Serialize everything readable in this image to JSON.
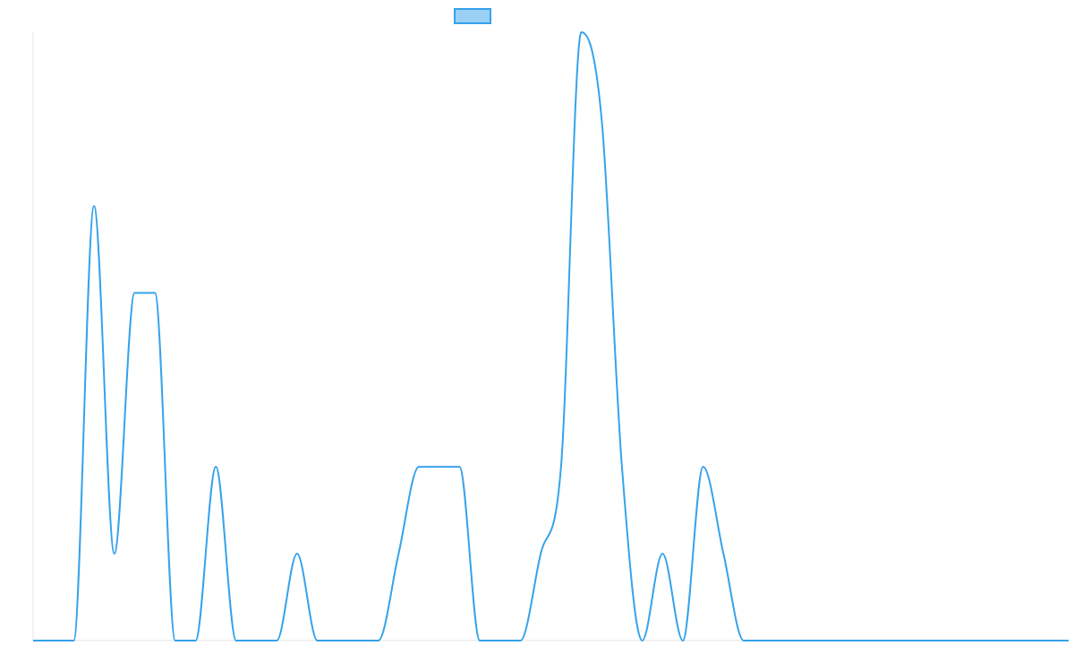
{
  "chart_data": {
    "type": "line",
    "title": "",
    "xlabel": "",
    "ylabel": "",
    "grid": false,
    "legend": "top-center",
    "line_color": "#36a2eb",
    "fill_color": "#9ad0f5",
    "axis_color": "#e6e6e6",
    "ylim": [
      0,
      7
    ],
    "x": [
      0,
      1,
      2,
      3,
      4,
      5,
      6,
      7,
      8,
      9,
      10,
      11,
      12,
      13,
      14,
      15,
      16,
      17,
      18,
      19,
      20,
      21,
      22,
      23,
      24,
      25,
      26,
      27,
      28,
      29,
      30,
      31,
      32,
      33,
      34,
      35,
      36,
      37,
      38,
      39,
      40,
      41,
      42,
      43,
      44,
      45,
      46,
      47,
      48,
      49,
      50,
      51
    ],
    "series": [
      {
        "values": [
          0,
          0,
          0,
          5,
          1,
          4,
          4,
          0,
          0,
          2,
          0,
          0,
          0,
          1,
          0,
          0,
          0,
          0,
          1,
          2,
          2,
          2,
          0,
          0,
          0,
          1,
          2,
          7,
          6,
          2,
          0,
          1,
          0,
          2,
          1,
          0,
          0,
          0,
          0,
          0,
          0,
          0,
          0,
          0,
          0,
          0,
          0,
          0,
          0,
          0,
          0,
          0
        ]
      }
    ]
  }
}
